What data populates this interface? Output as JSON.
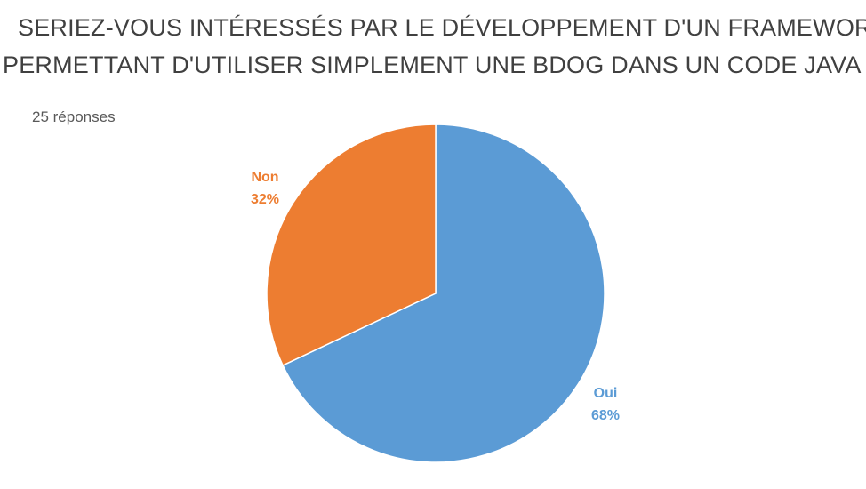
{
  "chart_data": {
    "type": "pie",
    "title_lines": [
      "SERIEZ-VOUS INTÉRESSÉS PAR LE DÉVELOPPEMENT D'UN FRAMEWORK",
      "PERMETTANT D'UTILISER SIMPLEMENT UNE BDOG DANS UN CODE JAVA ?"
    ],
    "subtitle": "25 réponses",
    "slices": [
      {
        "label": "Oui",
        "value": 68,
        "value_label": "68%",
        "color": "#5B9BD5"
      },
      {
        "label": "Non",
        "value": 32,
        "value_label": "32%",
        "color": "#ED7D31"
      }
    ]
  }
}
